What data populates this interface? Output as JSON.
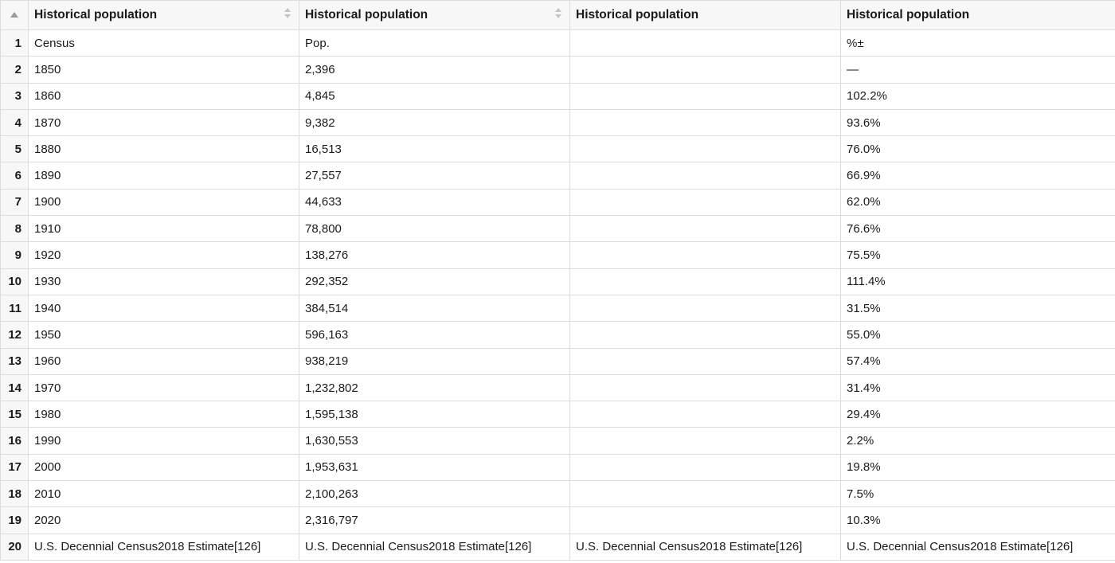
{
  "table": {
    "columns": [
      "Historical population",
      "Historical population",
      "Historical population",
      "Historical population"
    ],
    "rows": [
      [
        "Census",
        "Pop.",
        "",
        "%±"
      ],
      [
        "1850",
        "2,396",
        "",
        "—"
      ],
      [
        "1860",
        "4,845",
        "",
        "102.2%"
      ],
      [
        "1870",
        "9,382",
        "",
        "93.6%"
      ],
      [
        "1880",
        "16,513",
        "",
        "76.0%"
      ],
      [
        "1890",
        "27,557",
        "",
        "66.9%"
      ],
      [
        "1900",
        "44,633",
        "",
        "62.0%"
      ],
      [
        "1910",
        "78,800",
        "",
        "76.6%"
      ],
      [
        "1920",
        "138,276",
        "",
        "75.5%"
      ],
      [
        "1930",
        "292,352",
        "",
        "111.4%"
      ],
      [
        "1940",
        "384,514",
        "",
        "31.5%"
      ],
      [
        "1950",
        "596,163",
        "",
        "55.0%"
      ],
      [
        "1960",
        "938,219",
        "",
        "57.4%"
      ],
      [
        "1970",
        "1,232,802",
        "",
        "31.4%"
      ],
      [
        "1980",
        "1,595,138",
        "",
        "29.4%"
      ],
      [
        "1990",
        "1,630,553",
        "",
        "2.2%"
      ],
      [
        "2000",
        "1,953,631",
        "",
        "19.8%"
      ],
      [
        "2010",
        "2,100,263",
        "",
        "7.5%"
      ],
      [
        "2020",
        "2,316,797",
        "",
        "10.3%"
      ],
      [
        "U.S. Decennial Census2018 Estimate[126]",
        "U.S. Decennial Census2018 Estimate[126]",
        "U.S. Decennial Census2018 Estimate[126]",
        "U.S. Decennial Census2018 Estimate[126]"
      ]
    ]
  }
}
